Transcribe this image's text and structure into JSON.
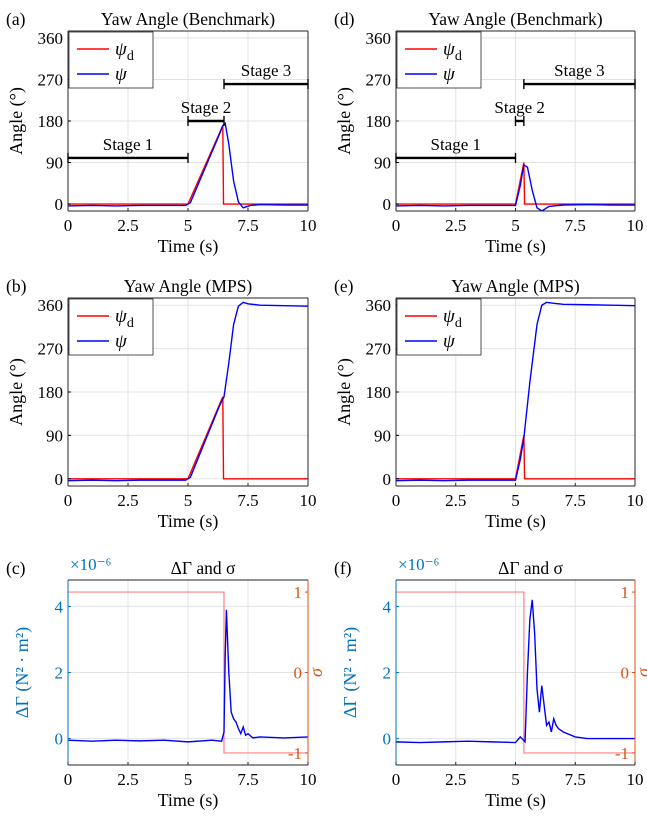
{
  "chart_data": [
    {
      "id": "a",
      "panel_label": "(a)",
      "type": "line",
      "title": "Yaw Angle (Benchmark)",
      "xlabel": "Time (s)",
      "ylabel": "Angle (°)",
      "xlim": [
        0,
        10
      ],
      "ylim": [
        -15,
        375
      ],
      "xticks": [
        0,
        2.5,
        5,
        7.5,
        10
      ],
      "xtick_labels": [
        "0",
        "2.5",
        "5",
        "7.5",
        "10"
      ],
      "yticks": [
        0,
        90,
        180,
        270,
        360
      ],
      "ytick_labels": [
        "0",
        "90",
        "180",
        "270",
        "360"
      ],
      "grid": true,
      "legend_position": "top-left",
      "legend": [
        {
          "label": "ψ",
          "sub": "d",
          "color": "#ff0000"
        },
        {
          "label": "ψ",
          "sub": "",
          "color": "#0000ff"
        }
      ],
      "series": [
        {
          "color": "#ff0000",
          "x": [
            0,
            5,
            6.45,
            6.48,
            10
          ],
          "y": [
            0,
            0,
            170,
            0,
            0
          ]
        },
        {
          "color": "#0000ff",
          "x": [
            0,
            1,
            2,
            3,
            4,
            4.9,
            5.1,
            6.3,
            6.45,
            6.55,
            6.7,
            6.9,
            7.1,
            7.3,
            7.6,
            8,
            9,
            10
          ],
          "y": [
            -4,
            -3,
            -4,
            -3,
            -3,
            -3,
            3,
            150,
            170,
            175,
            130,
            50,
            5,
            -8,
            -3,
            -1,
            -2,
            -2
          ]
        }
      ],
      "annotations": [
        {
          "label": "Stage 1",
          "x1": 0,
          "x2": 5,
          "y": 100
        },
        {
          "label": "Stage 2",
          "x1": 5,
          "x2": 6.5,
          "y": 180
        },
        {
          "label": "Stage 3",
          "x1": 6.5,
          "x2": 10,
          "y": 260
        }
      ]
    },
    {
      "id": "d",
      "panel_label": "(d)",
      "type": "line",
      "title": "Yaw Angle (Benchmark)",
      "xlabel": "Time (s)",
      "ylabel": "Angle (°)",
      "xlim": [
        0,
        10
      ],
      "ylim": [
        -15,
        375
      ],
      "xticks": [
        0,
        2.5,
        5,
        7.5,
        10
      ],
      "xtick_labels": [
        "0",
        "2.5",
        "5",
        "7.5",
        "10"
      ],
      "yticks": [
        0,
        90,
        180,
        270,
        360
      ],
      "ytick_labels": [
        "0",
        "90",
        "180",
        "270",
        "360"
      ],
      "grid": true,
      "legend_position": "top-left",
      "legend": [
        {
          "label": "ψ",
          "sub": "d",
          "color": "#ff0000"
        },
        {
          "label": "ψ",
          "sub": "",
          "color": "#0000ff"
        }
      ],
      "series": [
        {
          "color": "#ff0000",
          "x": [
            0,
            5,
            5.35,
            5.38,
            10
          ],
          "y": [
            0,
            0,
            90,
            0,
            0
          ]
        },
        {
          "color": "#0000ff",
          "x": [
            0,
            1,
            2,
            3,
            4,
            5,
            5.2,
            5.35,
            5.5,
            5.7,
            5.9,
            6.1,
            6.4,
            7,
            8,
            9,
            10
          ],
          "y": [
            -4,
            -3,
            -4,
            -3,
            -3,
            -3,
            40,
            85,
            80,
            30,
            -8,
            -15,
            -5,
            -2,
            -1,
            -2,
            -2
          ]
        }
      ],
      "annotations": [
        {
          "label": "Stage 1",
          "x1": 0,
          "x2": 5,
          "y": 100
        },
        {
          "label": "Stage 2",
          "x1": 5,
          "x2": 5.35,
          "y": 180
        },
        {
          "label": "Stage 3",
          "x1": 5.35,
          "x2": 10,
          "y": 260
        }
      ]
    },
    {
      "id": "b",
      "panel_label": "(b)",
      "type": "line",
      "title": "Yaw Angle (MPS)",
      "xlabel": "Time (s)",
      "ylabel": "Angle (°)",
      "xlim": [
        0,
        10
      ],
      "ylim": [
        -15,
        375
      ],
      "xticks": [
        0,
        2.5,
        5,
        7.5,
        10
      ],
      "xtick_labels": [
        "0",
        "2.5",
        "5",
        "7.5",
        "10"
      ],
      "yticks": [
        0,
        90,
        180,
        270,
        360
      ],
      "ytick_labels": [
        "0",
        "90",
        "180",
        "270",
        "360"
      ],
      "grid": true,
      "legend_position": "top-left",
      "legend": [
        {
          "label": "ψ",
          "sub": "d",
          "color": "#ff0000"
        },
        {
          "label": "ψ",
          "sub": "",
          "color": "#0000ff"
        }
      ],
      "series": [
        {
          "color": "#ff0000",
          "x": [
            0,
            5,
            6.45,
            6.48,
            10
          ],
          "y": [
            0,
            0,
            170,
            0,
            0
          ]
        },
        {
          "color": "#0000ff",
          "x": [
            0,
            1,
            2,
            3,
            4,
            4.9,
            5.1,
            6.3,
            6.5,
            6.7,
            6.9,
            7.1,
            7.3,
            7.5,
            8,
            9,
            10
          ],
          "y": [
            -4,
            -3,
            -4,
            -3,
            -3,
            -3,
            3,
            150,
            170,
            240,
            320,
            358,
            366,
            363,
            360,
            359,
            358
          ]
        }
      ],
      "annotations": []
    },
    {
      "id": "e",
      "panel_label": "(e)",
      "type": "line",
      "title": "Yaw Angle (MPS)",
      "xlabel": "Time (s)",
      "ylabel": "Angle (°)",
      "xlim": [
        0,
        10
      ],
      "ylim": [
        -15,
        375
      ],
      "xticks": [
        0,
        2.5,
        5,
        7.5,
        10
      ],
      "xtick_labels": [
        "0",
        "2.5",
        "5",
        "7.5",
        "10"
      ],
      "yticks": [
        0,
        90,
        180,
        270,
        360
      ],
      "ytick_labels": [
        "0",
        "90",
        "180",
        "270",
        "360"
      ],
      "grid": true,
      "legend_position": "top-left",
      "legend": [
        {
          "label": "ψ",
          "sub": "d",
          "color": "#ff0000"
        },
        {
          "label": "ψ",
          "sub": "",
          "color": "#0000ff"
        }
      ],
      "series": [
        {
          "color": "#ff0000",
          "x": [
            0,
            5,
            5.35,
            5.38,
            10
          ],
          "y": [
            0,
            0,
            90,
            0,
            0
          ]
        },
        {
          "color": "#0000ff",
          "x": [
            0,
            1,
            2,
            3,
            4,
            5,
            5.2,
            5.35,
            5.6,
            5.9,
            6.1,
            6.3,
            6.6,
            7,
            8,
            9,
            10
          ],
          "y": [
            -4,
            -3,
            -4,
            -3,
            -3,
            -3,
            40,
            85,
            200,
            320,
            360,
            366,
            364,
            362,
            361,
            360,
            359
          ]
        }
      ],
      "annotations": []
    },
    {
      "id": "c",
      "panel_label": "(c)",
      "type": "line",
      "title": "ΔΓ and σ",
      "xlabel": "Time (s)",
      "ylabel": "ΔΓ (N² · m²)",
      "y2label": "σ",
      "exponent_label": "×10⁻⁶",
      "xlim": [
        0,
        10
      ],
      "ylim": [
        -0.8,
        4.8
      ],
      "y2lim": [
        -1.15,
        1.15
      ],
      "xticks": [
        0,
        2.5,
        5,
        7.5,
        10
      ],
      "xtick_labels": [
        "0",
        "2.5",
        "5",
        "7.5",
        "10"
      ],
      "yticks": [
        0,
        2,
        4
      ],
      "ytick_labels": [
        "0",
        "2",
        "4"
      ],
      "y2ticks": [
        -1,
        0,
        1
      ],
      "y2tick_labels": [
        "-1",
        "0",
        "1"
      ],
      "grid": true,
      "series": [
        {
          "axis": "y2",
          "color": "#ff8080",
          "x": [
            0,
            6.5,
            6.5,
            10
          ],
          "y": [
            1,
            1,
            -1,
            -1
          ]
        },
        {
          "axis": "y",
          "color": "#0000ff",
          "x": [
            0,
            1,
            2,
            3,
            4,
            5,
            6,
            6.4,
            6.5,
            6.55,
            6.6,
            6.7,
            6.8,
            6.9,
            7.0,
            7.1,
            7.2,
            7.3,
            7.4,
            7.5,
            7.7,
            8,
            9,
            10
          ],
          "y": [
            -0.05,
            -0.08,
            -0.05,
            -0.07,
            -0.05,
            -0.1,
            -0.05,
            -0.08,
            0.2,
            2.5,
            3.9,
            2.0,
            0.8,
            0.6,
            0.5,
            0.3,
            0.15,
            0.35,
            0.1,
            0.15,
            0.02,
            0.05,
            0.02,
            0.05
          ]
        }
      ]
    },
    {
      "id": "f",
      "panel_label": "(f)",
      "type": "line",
      "title": "ΔΓ and σ",
      "xlabel": "Time (s)",
      "ylabel": "ΔΓ (N² · m²)",
      "y2label": "σ",
      "exponent_label": "×10⁻⁶",
      "xlim": [
        0,
        10
      ],
      "ylim": [
        -0.8,
        4.8
      ],
      "y2lim": [
        -1.15,
        1.15
      ],
      "xticks": [
        0,
        2.5,
        5,
        7.5,
        10
      ],
      "xtick_labels": [
        "0",
        "2.5",
        "5",
        "7.5",
        "10"
      ],
      "yticks": [
        0,
        2,
        4
      ],
      "ytick_labels": [
        "0",
        "2",
        "4"
      ],
      "y2ticks": [
        -1,
        0,
        1
      ],
      "y2tick_labels": [
        "-1",
        "0",
        "1"
      ],
      "grid": true,
      "series": [
        {
          "axis": "y2",
          "color": "#ff8080",
          "x": [
            0,
            5.35,
            5.35,
            10
          ],
          "y": [
            1,
            1,
            -1,
            -1
          ]
        },
        {
          "axis": "y",
          "color": "#0000ff",
          "x": [
            0,
            1,
            2,
            3,
            4,
            5,
            5.2,
            5.4,
            5.5,
            5.6,
            5.7,
            5.8,
            5.9,
            6.0,
            6.1,
            6.2,
            6.3,
            6.4,
            6.5,
            6.6,
            6.7,
            6.8,
            7,
            7.5,
            8,
            9,
            10
          ],
          "y": [
            -0.1,
            -0.12,
            -0.1,
            -0.08,
            -0.1,
            -0.12,
            0.05,
            -0.1,
            2.0,
            3.6,
            4.2,
            3.2,
            1.5,
            0.8,
            1.6,
            1.0,
            0.4,
            0.5,
            0.2,
            0.6,
            0.4,
            0.3,
            0.2,
            0.05,
            0.0,
            0.0,
            0.0
          ]
        }
      ]
    }
  ]
}
